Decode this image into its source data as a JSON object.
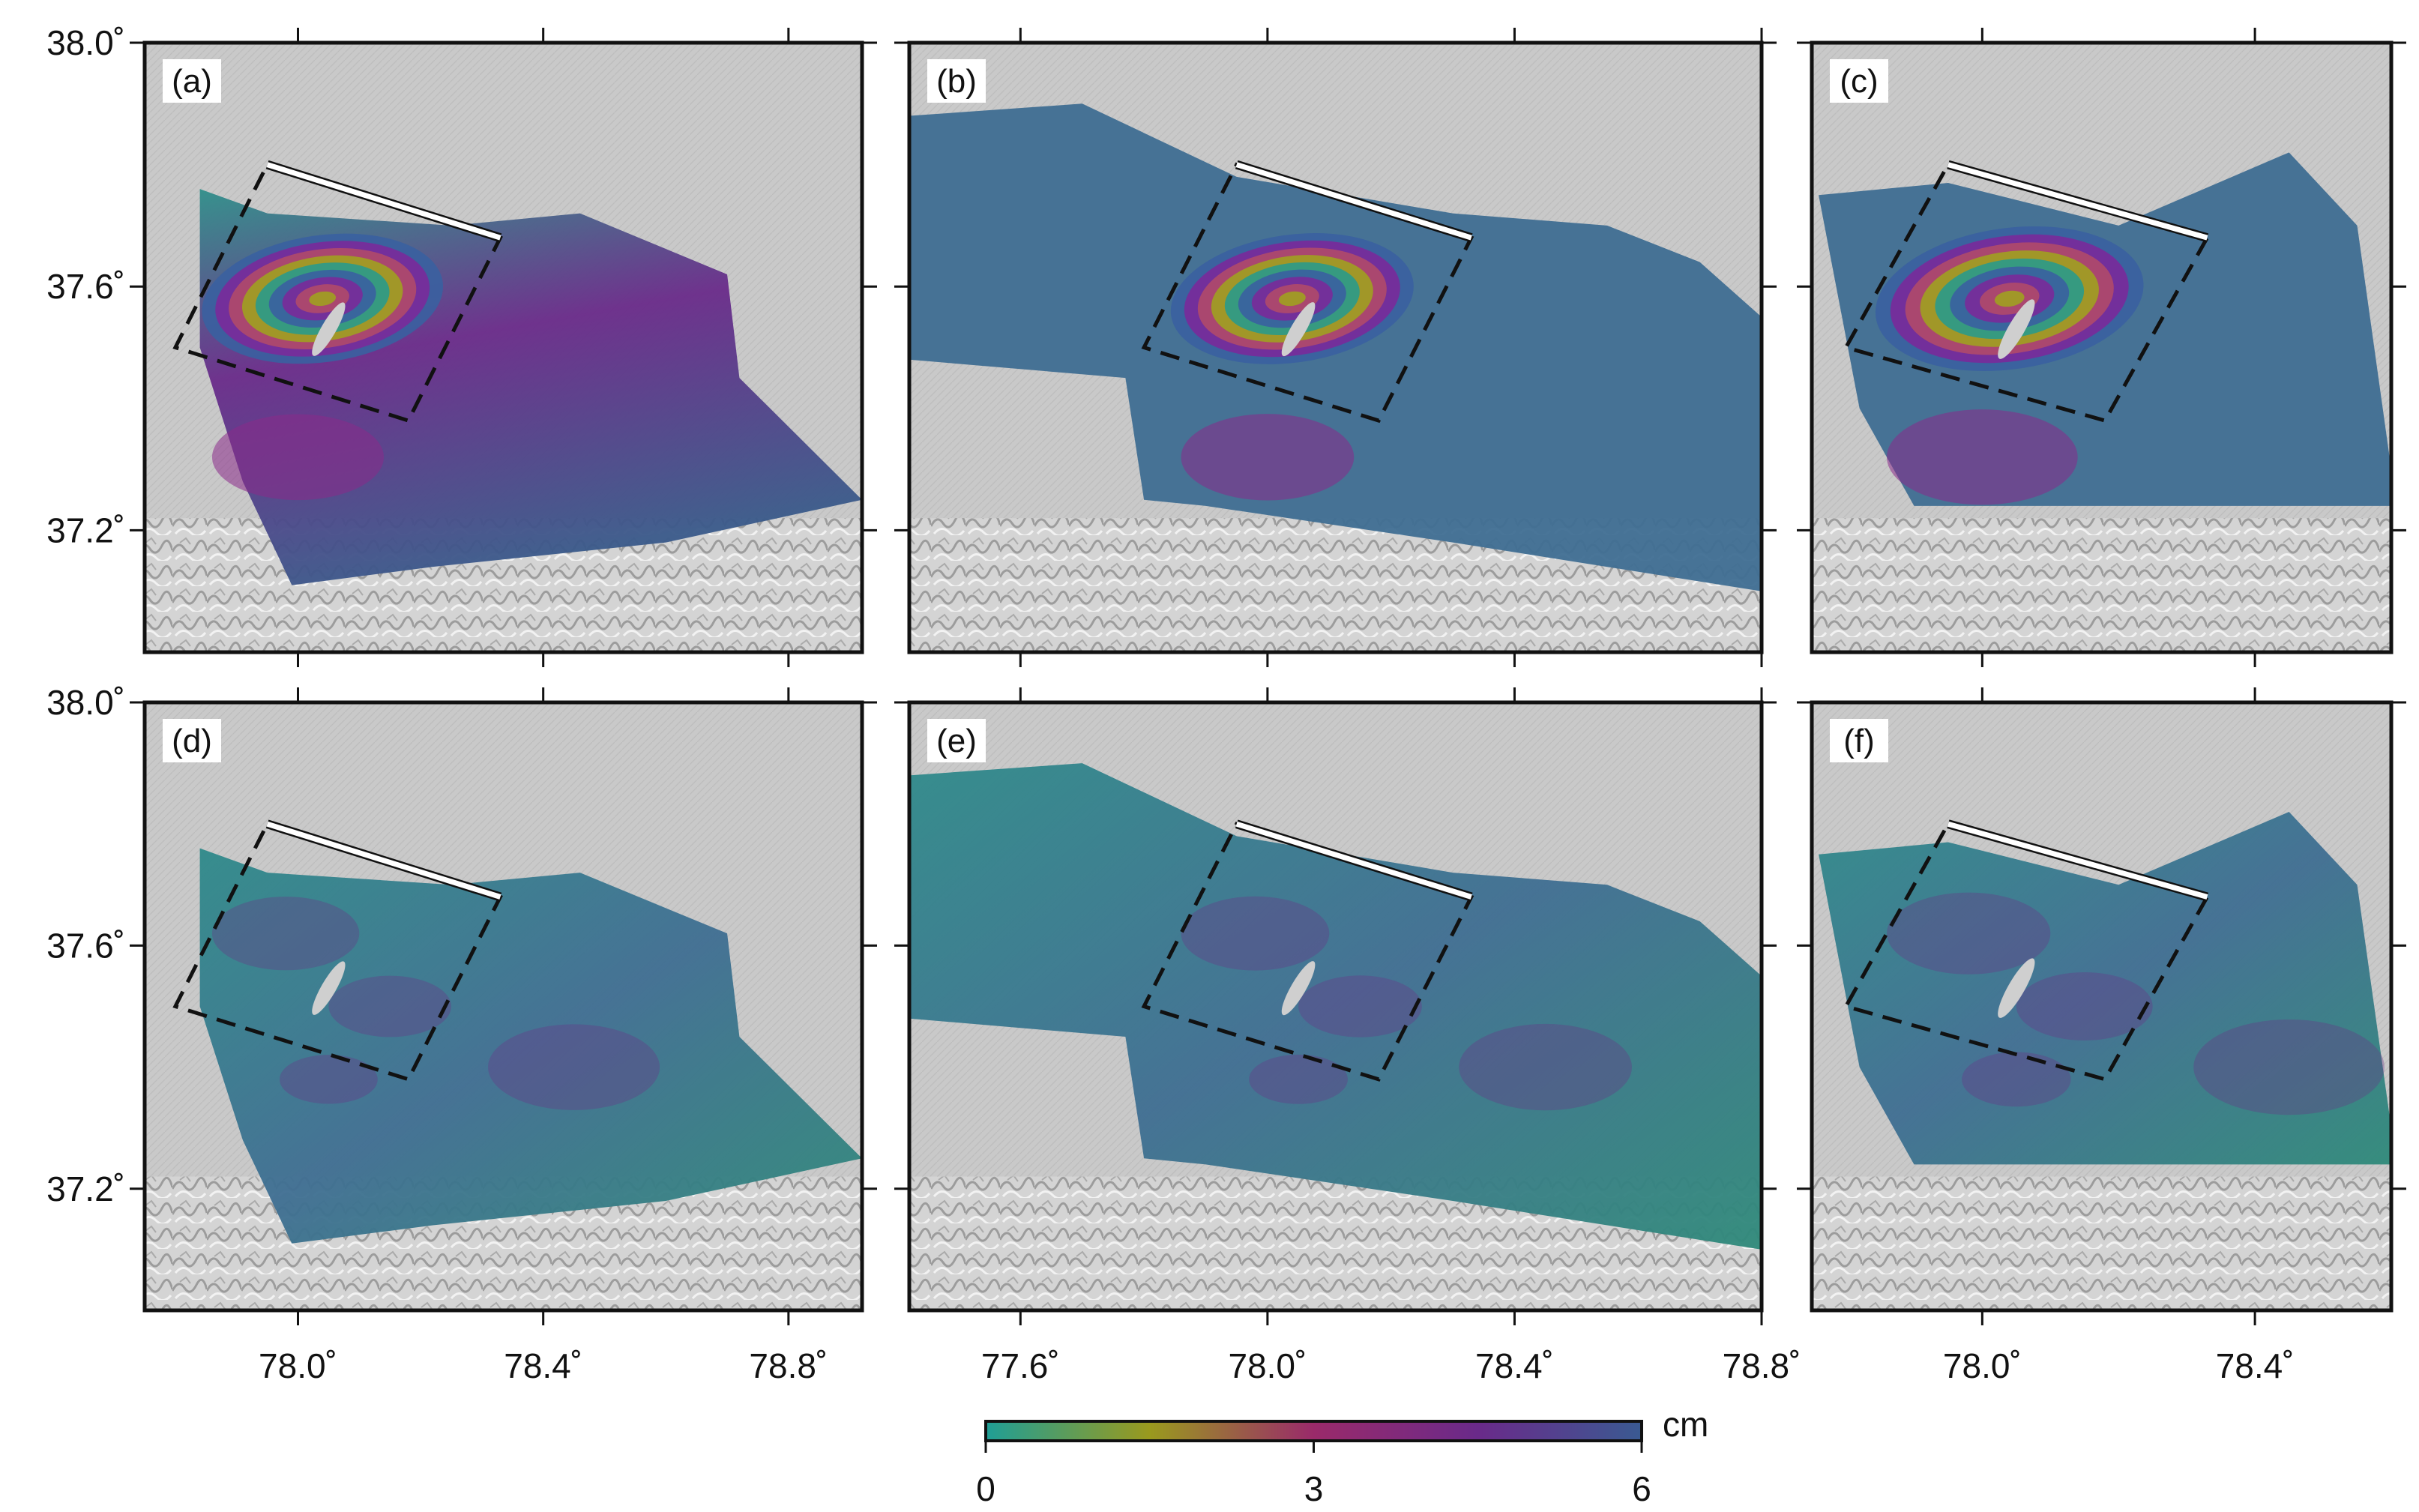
{
  "figure": {
    "panels": [
      {
        "id": "a",
        "label": "(a)",
        "lon_range": [
          77.75,
          78.92
        ],
        "lat_range": [
          37.0,
          38.0
        ],
        "pattern": "fringes"
      },
      {
        "id": "b",
        "label": "(b)",
        "lon_range": [
          77.42,
          78.8
        ],
        "lat_range": [
          37.0,
          38.0
        ],
        "pattern": "fringes"
      },
      {
        "id": "c",
        "label": "(c)",
        "lon_range": [
          77.75,
          78.6
        ],
        "lat_range": [
          37.0,
          38.0
        ],
        "pattern": "fringes"
      },
      {
        "id": "d",
        "label": "(d)",
        "lon_range": [
          77.75,
          78.92
        ],
        "lat_range": [
          37.0,
          38.0
        ],
        "pattern": "residual"
      },
      {
        "id": "e",
        "label": "(e)",
        "lon_range": [
          77.42,
          78.8
        ],
        "lat_range": [
          37.0,
          38.0
        ],
        "pattern": "residual"
      },
      {
        "id": "f",
        "label": "(f)",
        "lon_range": [
          77.75,
          78.6
        ],
        "lat_range": [
          37.0,
          38.0
        ],
        "pattern": "residual"
      }
    ],
    "y_ticks": [
      {
        "value": 38.0,
        "label": "38.0˚"
      },
      {
        "value": 37.6,
        "label": "37.6˚"
      },
      {
        "value": 37.2,
        "label": "37.2˚"
      }
    ],
    "x_ticks_a": [
      {
        "value": 78.0,
        "label": "78.0˚"
      },
      {
        "value": 78.4,
        "label": "78.4˚"
      },
      {
        "value": 78.8,
        "label": "78.8˚"
      }
    ],
    "x_ticks_b": [
      {
        "value": 77.6,
        "label": "77.6˚"
      },
      {
        "value": 78.0,
        "label": "78.0˚"
      },
      {
        "value": 78.4,
        "label": "78.4˚"
      },
      {
        "value": 78.8,
        "label": "78.8˚"
      }
    ],
    "x_ticks_c": [
      {
        "value": 78.0,
        "label": "78.0˚"
      },
      {
        "value": 78.4,
        "label": "78.4˚"
      }
    ],
    "fault_box": {
      "corners": [
        [
          77.95,
          37.8
        ],
        [
          78.33,
          37.68
        ],
        [
          78.18,
          37.38
        ],
        [
          77.8,
          37.5
        ]
      ]
    },
    "colorbar": {
      "unit": "cm",
      "min": 0,
      "max": 6,
      "tick_labels": [
        "0",
        "3",
        "6"
      ],
      "colors": [
        "#1f9e96",
        "#9a9a1e",
        "#9a2a6a",
        "#6a2a8a",
        "#3a5a92"
      ]
    },
    "colors": {
      "land_shade": "#c8c8c8",
      "fringe_base": "#3f6e92",
      "residual_base": "#2f8a8a",
      "residual_purple": "#6a3488",
      "fault_trace": "#ffffff"
    }
  }
}
